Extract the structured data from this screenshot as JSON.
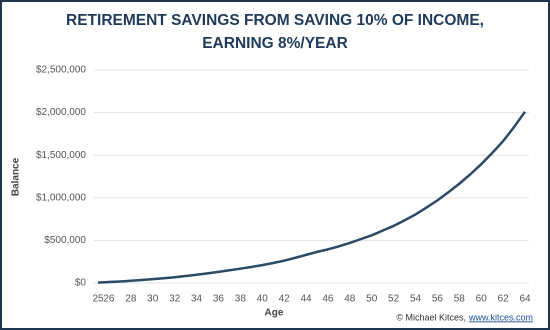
{
  "chart_data": {
    "type": "line",
    "title": [
      "RETIREMENT SAVINGS FROM SAVING 10% OF INCOME,",
      "EARNING 8%/YEAR"
    ],
    "x_label": "Age",
    "y_label": "Balance",
    "credit": "© Michael Kitces,",
    "credit_link": "www.kitces.com",
    "x": [
      25,
      26,
      27,
      28,
      29,
      30,
      31,
      32,
      33,
      34,
      35,
      36,
      37,
      38,
      39,
      40,
      41,
      42,
      43,
      44,
      45,
      46,
      47,
      48,
      49,
      50,
      51,
      52,
      53,
      54,
      55,
      56,
      57,
      58,
      59,
      60,
      61,
      62,
      63,
      64
    ],
    "series": [
      {
        "name": "Balance",
        "color": "#2b4a66",
        "values": [
          5000,
          11000,
          18000,
          26000,
          35000,
          45000,
          56000,
          68000,
          82000,
          97000,
          113000,
          131000,
          150000,
          168000,
          188000,
          210000,
          235000,
          262000,
          295000,
          330000,
          365000,
          395000,
          430000,
          470000,
          515000,
          560000,
          615000,
          670000,
          735000,
          805000,
          885000,
          970000,
          1065000,
          1165000,
          1275000,
          1395000,
          1525000,
          1665000,
          1830000,
          2010000
        ]
      }
    ],
    "xlim": [
      25,
      64
    ],
    "xticks": [
      25,
      26,
      28,
      30,
      32,
      34,
      36,
      38,
      40,
      42,
      44,
      46,
      48,
      50,
      52,
      54,
      56,
      58,
      60,
      62,
      64
    ],
    "ylim": [
      0,
      2500000
    ],
    "yticks": [
      {
        "value": 0,
        "label": "$0"
      },
      {
        "value": 500000,
        "label": "$500,000"
      },
      {
        "value": 1000000,
        "label": "$1,000,000"
      },
      {
        "value": 1500000,
        "label": "$1,500,000"
      },
      {
        "value": 2000000,
        "label": "$2,000,000"
      },
      {
        "value": 2500000,
        "label": "$2,500,000"
      }
    ],
    "grid": true
  }
}
